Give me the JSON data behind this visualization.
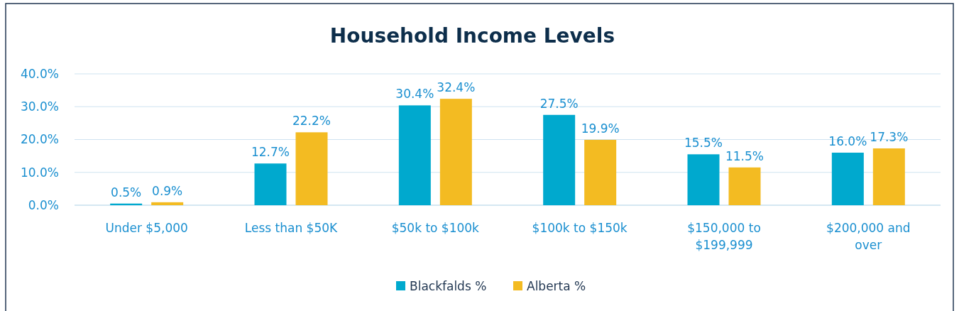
{
  "chart_data": {
    "type": "bar",
    "title": "Household Income Levels",
    "categories": [
      "Under $5,000",
      "Less than $50K",
      "$50k to $100k",
      "$100k to $150k",
      "$150,000 to $199,999",
      "$200,000 and over"
    ],
    "series": [
      {
        "name": "Blackfalds %",
        "color": "#00a9ce",
        "values": [
          0.5,
          12.7,
          30.4,
          27.5,
          15.5,
          16.0
        ],
        "value_labels": [
          "0.5%",
          "12.7%",
          "30.4%",
          "27.5%",
          "15.5%",
          "16.0%"
        ]
      },
      {
        "name": "Alberta %",
        "color": "#f3bb22",
        "values": [
          0.9,
          22.2,
          32.4,
          19.9,
          11.5,
          17.3
        ],
        "value_labels": [
          "0.9%",
          "22.2%",
          "32.4%",
          "19.9%",
          "11.5%",
          "17.3%"
        ]
      }
    ],
    "ylim": [
      0,
      40
    ],
    "yticks": [
      {
        "value": 0,
        "label": "0.0%"
      },
      {
        "value": 10,
        "label": "10.0%"
      },
      {
        "value": 20,
        "label": "20.0%"
      },
      {
        "value": 30,
        "label": "30.0%"
      },
      {
        "value": 40,
        "label": "40.0%"
      }
    ],
    "grid": "y",
    "legend": "bottom"
  }
}
